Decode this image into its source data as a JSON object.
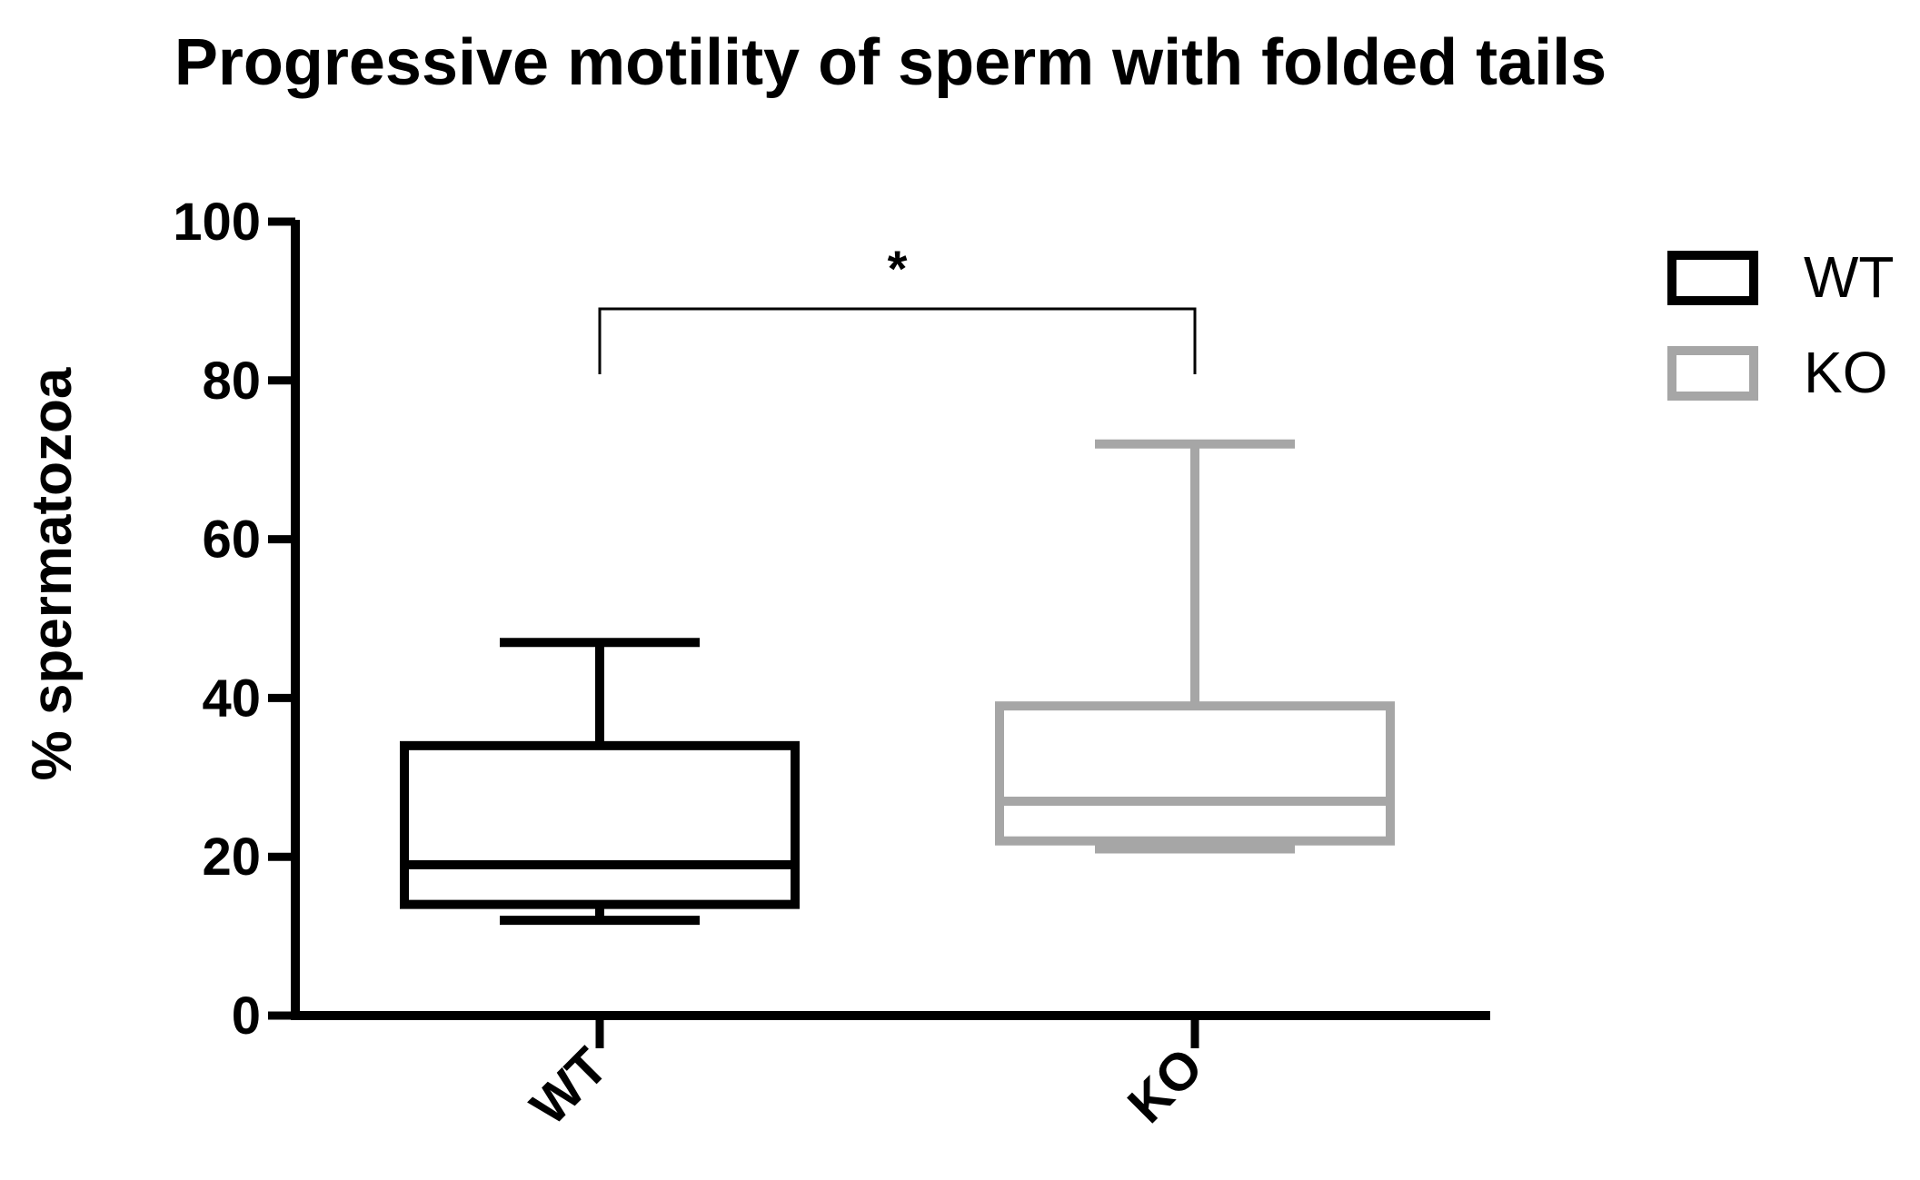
{
  "chart_data": {
    "type": "box",
    "title": "Progressive motility of sperm with folded tails",
    "xlabel": "",
    "ylabel": "% spermatozoa",
    "ylim": [
      0,
      100
    ],
    "y_ticks": [
      0,
      20,
      40,
      60,
      80,
      100
    ],
    "y_tick_labels": [
      "0",
      "20",
      "40",
      "60",
      "80",
      "100"
    ],
    "categories": [
      "WT",
      "KO"
    ],
    "series": [
      {
        "name": "WT",
        "color": "#000000",
        "min": 12,
        "q1": 14,
        "median": 19,
        "q3": 34,
        "max": 47
      },
      {
        "name": "KO",
        "color": "#a6a6a6",
        "min": 21,
        "q1": 22,
        "median": 27,
        "q3": 39,
        "max": 72
      }
    ],
    "legend_position": "top-right",
    "grid": false,
    "annotations": [
      {
        "text": "*",
        "type": "significance-bracket",
        "between": [
          "WT",
          "KO"
        ],
        "y": 85
      }
    ]
  }
}
